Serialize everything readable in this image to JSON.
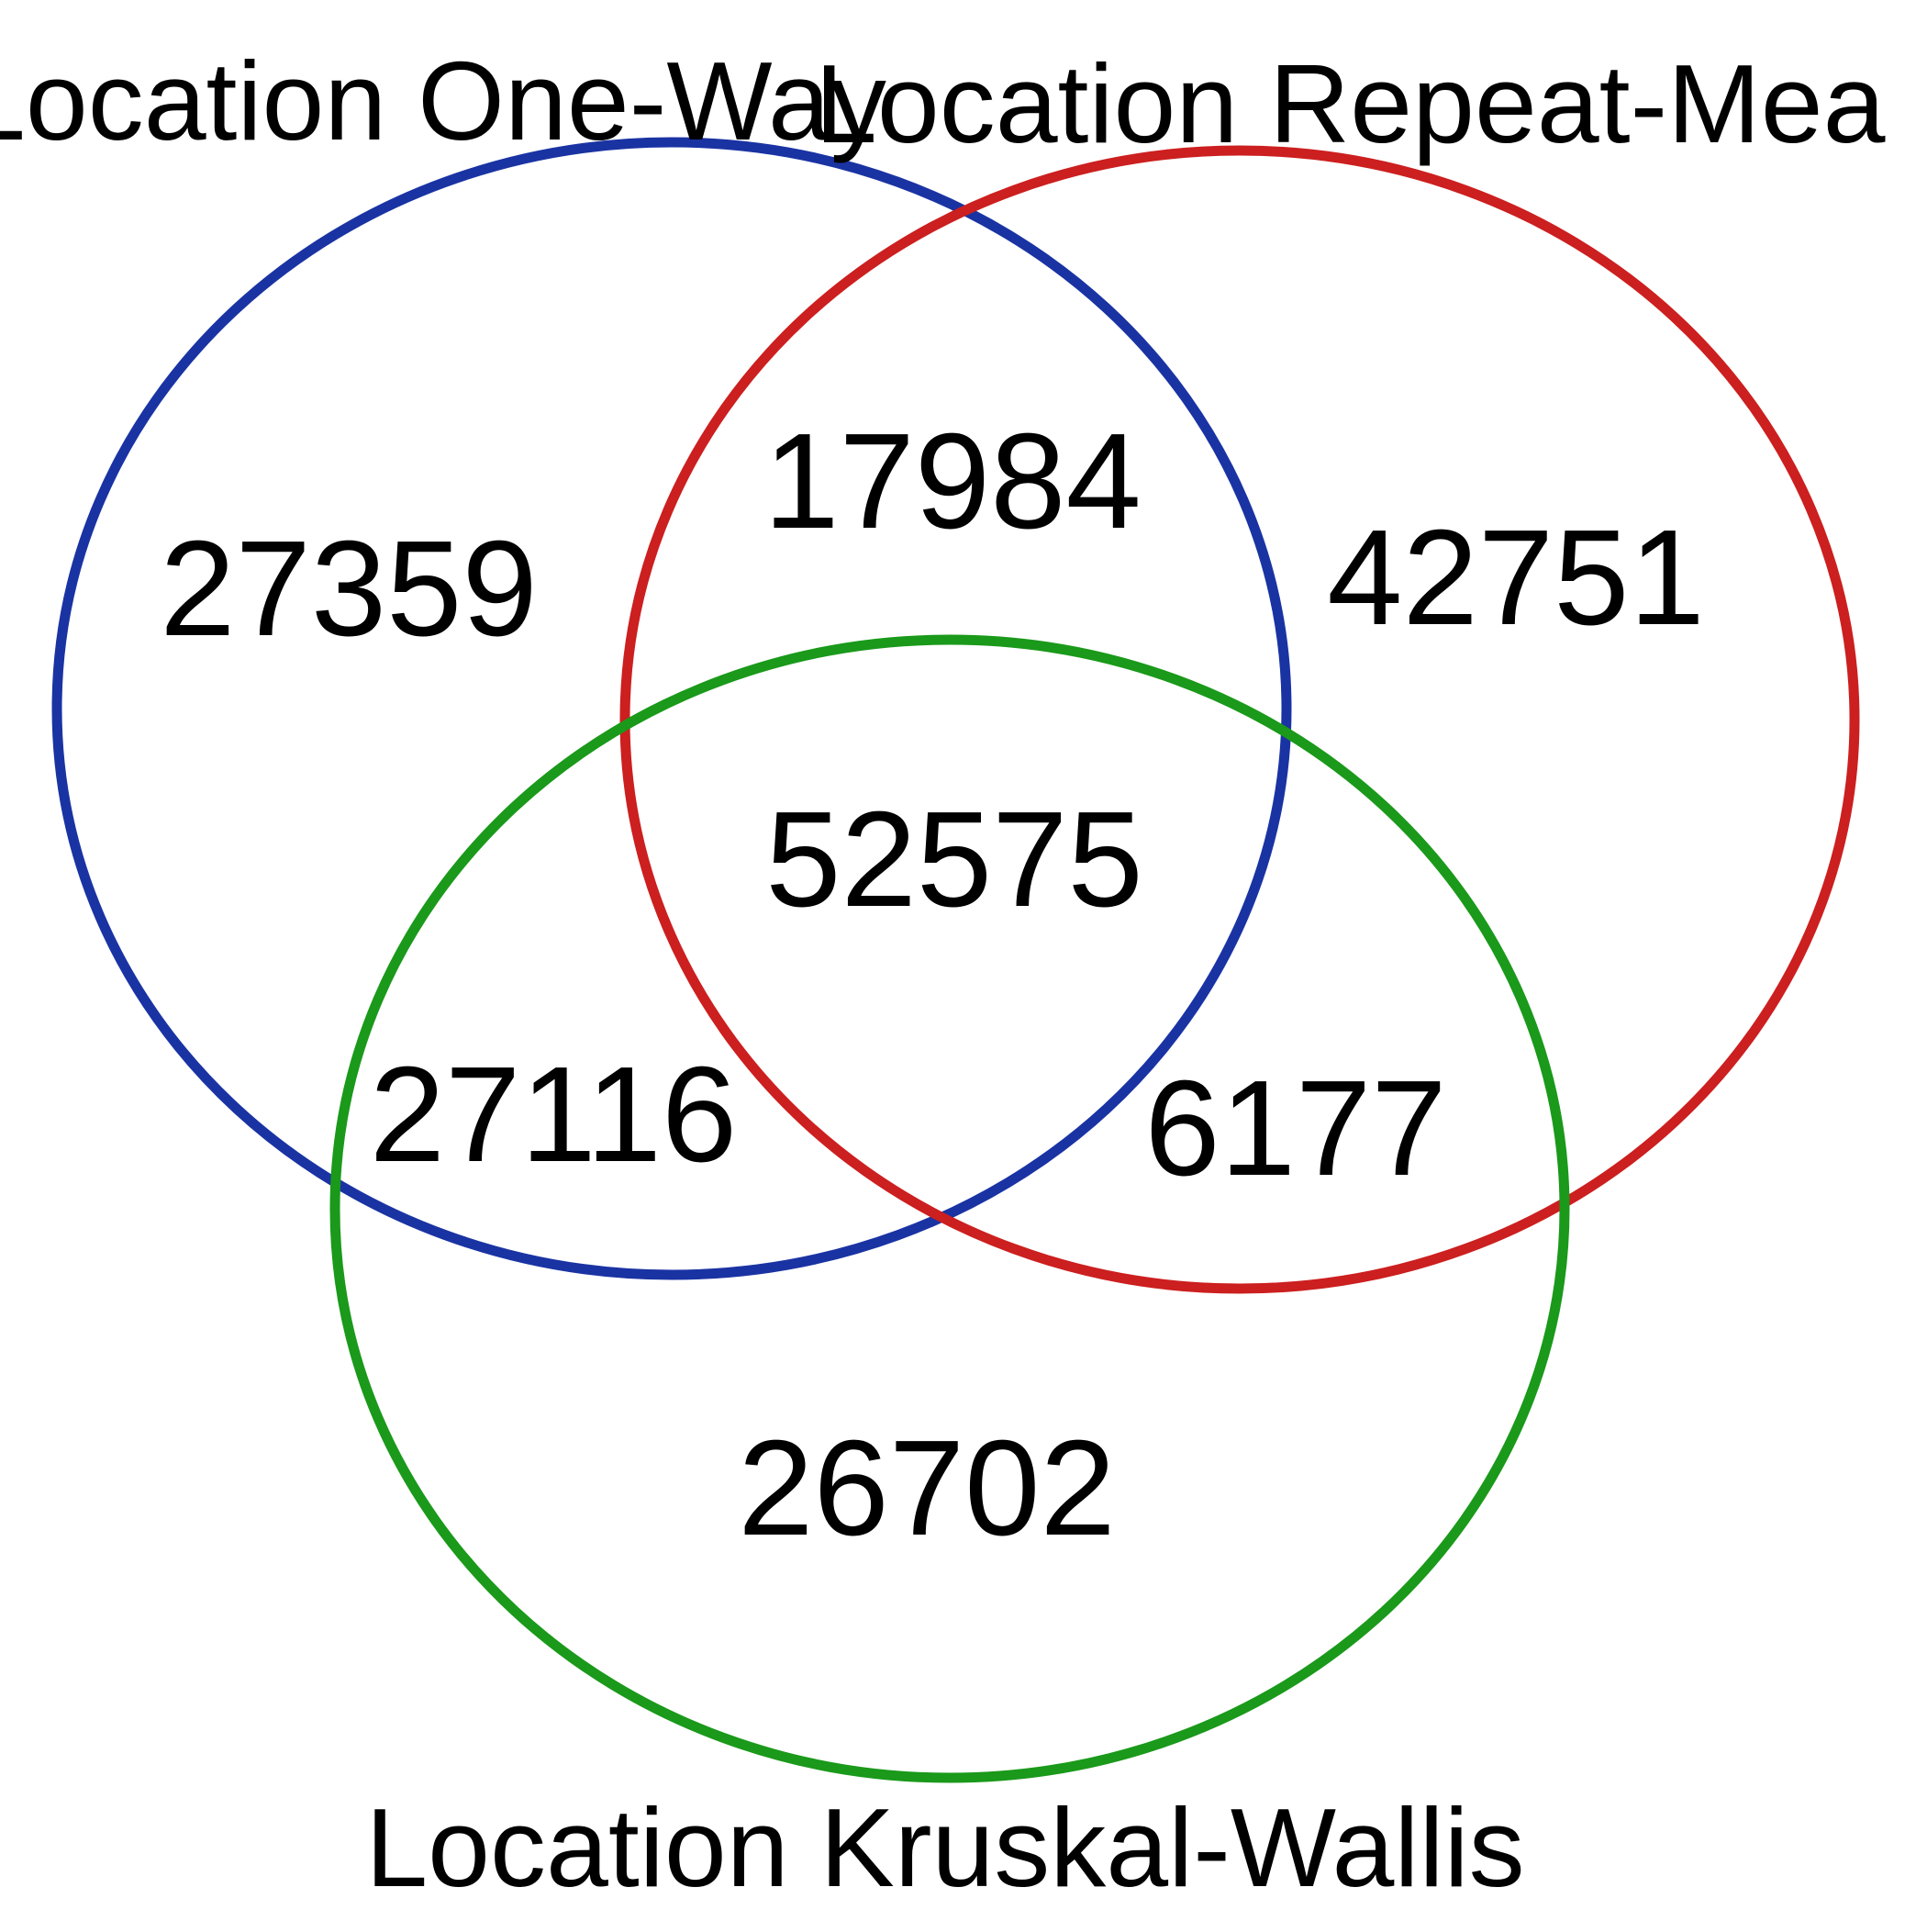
{
  "diagram": {
    "type": "venn-3",
    "sets": [
      {
        "id": "one_way",
        "label": "Location One-Way",
        "color": "#1a33a3"
      },
      {
        "id": "repeat_measures",
        "label": "Location Repeat-Mea",
        "color": "#cc1f1f"
      },
      {
        "id": "kruskal_wallis",
        "label": "Location Kruskal-Wallis",
        "color": "#1a991a"
      }
    ],
    "regions": {
      "one_way_only": "27359",
      "repeat_measures_only": "42751",
      "kruskal_wallis_only": "26702",
      "one_way_and_repeat_measures": "17984",
      "one_way_and_kruskal_wallis": "27116",
      "repeat_measures_and_kruskal_wallis": "6177",
      "all_three": "52575"
    }
  }
}
